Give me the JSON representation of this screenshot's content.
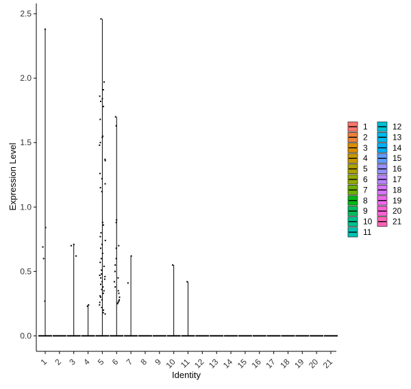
{
  "chart_data": {
    "type": "violin",
    "xlabel": "Identity",
    "ylabel": "Expression Level",
    "categories": [
      "1",
      "2",
      "3",
      "4",
      "5",
      "6",
      "7",
      "8",
      "9",
      "10",
      "11",
      "12",
      "13",
      "14",
      "15",
      "16",
      "17",
      "18",
      "19",
      "20",
      "21"
    ],
    "ylim": [
      -0.12,
      2.58
    ],
    "yticks": [
      0.0,
      0.5,
      1.0,
      1.5,
      2.0,
      2.5
    ],
    "ytick_labels": [
      "0.0",
      "0.5",
      "1.0",
      "1.5",
      "2.0",
      "2.5"
    ],
    "max_values": [
      2.38,
      0.0,
      0.71,
      0.24,
      2.46,
      1.7,
      0.62,
      0.0,
      0.0,
      0.55,
      0.42,
      0.0,
      0.0,
      0.0,
      0.0,
      0.0,
      0.0,
      0.0,
      0.0,
      0.0,
      0.0
    ],
    "points": [
      [
        1,
        2.38
      ],
      [
        1,
        0.84
      ],
      [
        1,
        0.69
      ],
      [
        1,
        0.6
      ],
      [
        1,
        0.27
      ],
      [
        3,
        0.71
      ],
      [
        3,
        0.7
      ],
      [
        3,
        0.62
      ],
      [
        4,
        0.24
      ],
      [
        4,
        0.23
      ],
      [
        5,
        2.46
      ],
      [
        5,
        1.97
      ],
      [
        5,
        1.91
      ],
      [
        5,
        1.86
      ],
      [
        5,
        1.84
      ],
      [
        5,
        1.82
      ],
      [
        5,
        1.78
      ],
      [
        5,
        1.68
      ],
      [
        5,
        1.55
      ],
      [
        5,
        1.54
      ],
      [
        5,
        1.5
      ],
      [
        5,
        1.48
      ],
      [
        5,
        1.37
      ],
      [
        5,
        1.36
      ],
      [
        5,
        1.26
      ],
      [
        5,
        1.22
      ],
      [
        5,
        1.18
      ],
      [
        5,
        1.15
      ],
      [
        5,
        1.12
      ],
      [
        5,
        0.88
      ],
      [
        5,
        0.86
      ],
      [
        5,
        0.8
      ],
      [
        5,
        0.77
      ],
      [
        5,
        0.74
      ],
      [
        5,
        0.71
      ],
      [
        5,
        0.68
      ],
      [
        5,
        0.64
      ],
      [
        5,
        0.6
      ],
      [
        5,
        0.57
      ],
      [
        5,
        0.54
      ],
      [
        5,
        0.51
      ],
      [
        5,
        0.48
      ],
      [
        5,
        0.47
      ],
      [
        5,
        0.46
      ],
      [
        5,
        0.45
      ],
      [
        5,
        0.44
      ],
      [
        5,
        0.42
      ],
      [
        5,
        0.4
      ],
      [
        5,
        0.38
      ],
      [
        5,
        0.36
      ],
      [
        5,
        0.35
      ],
      [
        5,
        0.33
      ],
      [
        5,
        0.31
      ],
      [
        5,
        0.3
      ],
      [
        5,
        0.28
      ],
      [
        5,
        0.26
      ],
      [
        5,
        0.24
      ],
      [
        5,
        0.22
      ],
      [
        5,
        0.2
      ],
      [
        5,
        0.18
      ],
      [
        5,
        0.17
      ],
      [
        6,
        1.7
      ],
      [
        6,
        1.63
      ],
      [
        6,
        0.9
      ],
      [
        6,
        0.88
      ],
      [
        6,
        0.7
      ],
      [
        6,
        0.68
      ],
      [
        6,
        0.6
      ],
      [
        6,
        0.55
      ],
      [
        6,
        0.5
      ],
      [
        6,
        0.45
      ],
      [
        6,
        0.42
      ],
      [
        6,
        0.38
      ],
      [
        6,
        0.35
      ],
      [
        6,
        0.33
      ],
      [
        6,
        0.3
      ],
      [
        6,
        0.28
      ],
      [
        6,
        0.27
      ],
      [
        6,
        0.26
      ],
      [
        6,
        0.25
      ],
      [
        7,
        0.62
      ],
      [
        7,
        0.41
      ],
      [
        10,
        0.55
      ],
      [
        11,
        0.42
      ]
    ],
    "legend": {
      "placement": "right",
      "entries": [
        {
          "label": "1",
          "color": "#F8766D"
        },
        {
          "label": "2",
          "color": "#EC8239"
        },
        {
          "label": "3",
          "color": "#DB8E00"
        },
        {
          "label": "4",
          "color": "#C79800"
        },
        {
          "label": "5",
          "color": "#AFA100"
        },
        {
          "label": "6",
          "color": "#93AA00"
        },
        {
          "label": "7",
          "color": "#6BB100"
        },
        {
          "label": "8",
          "color": "#00B813"
        },
        {
          "label": "9",
          "color": "#00BD5C"
        },
        {
          "label": "10",
          "color": "#00C08D"
        },
        {
          "label": "11",
          "color": "#00C1B2"
        },
        {
          "label": "12",
          "color": "#00BFD4"
        },
        {
          "label": "13",
          "color": "#00BAEE"
        },
        {
          "label": "14",
          "color": "#00B0F6"
        },
        {
          "label": "15",
          "color": "#619CFF"
        },
        {
          "label": "16",
          "color": "#9590FF"
        },
        {
          "label": "17",
          "color": "#B983FF"
        },
        {
          "label": "18",
          "color": "#D874FD"
        },
        {
          "label": "19",
          "color": "#EF67EB"
        },
        {
          "label": "20",
          "color": "#FD61D3"
        },
        {
          "label": "21",
          "color": "#FF63B6"
        }
      ]
    },
    "grid": false
  }
}
